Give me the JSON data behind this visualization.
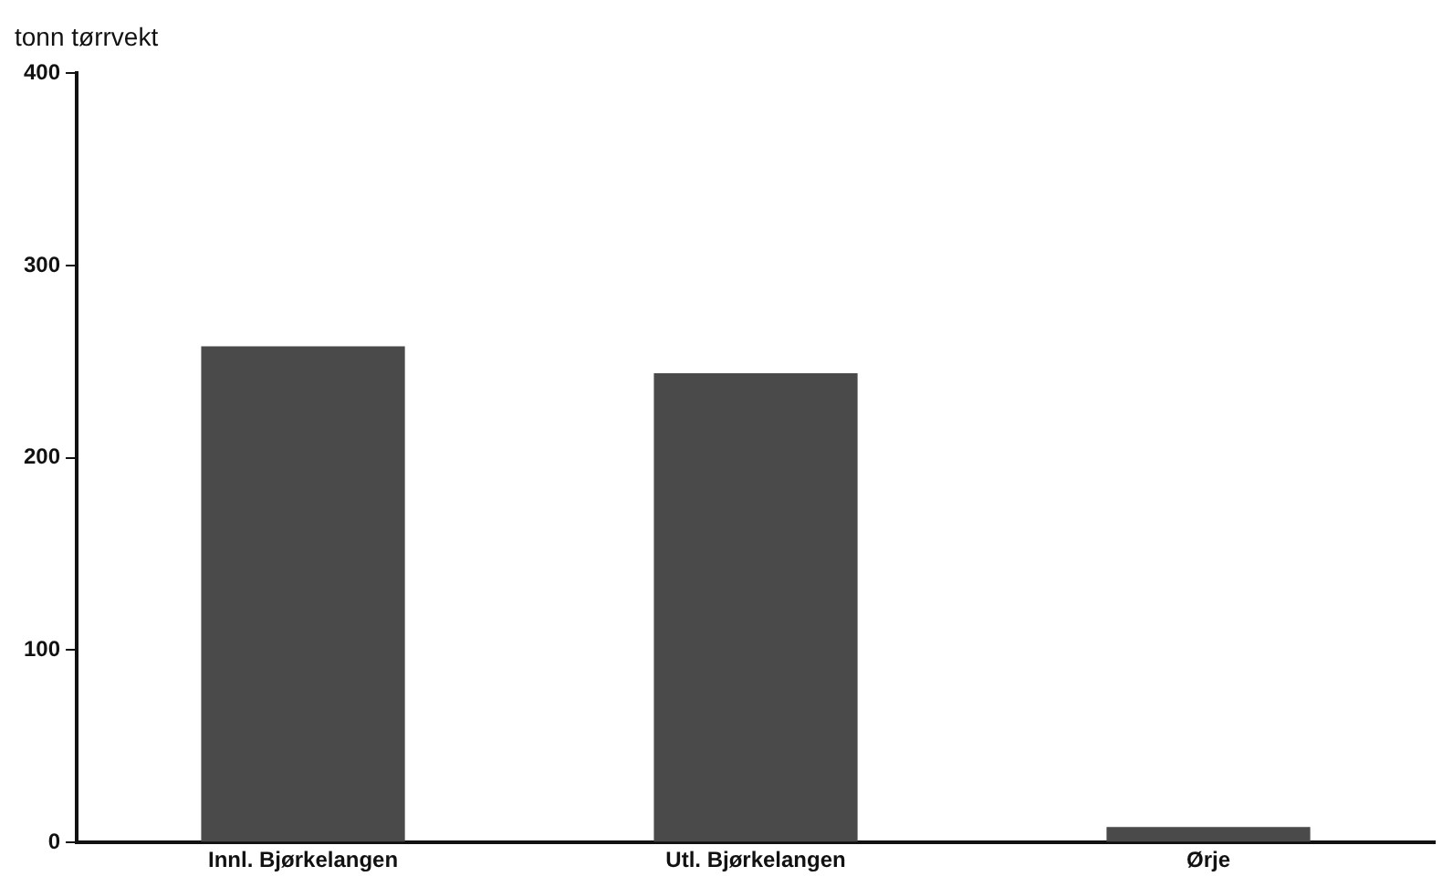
{
  "chart_data": {
    "type": "bar",
    "ylabel": "tonn tørrvekt",
    "categories": [
      "Innl. Bjørkelangen",
      "Utl. Bjørkelangen",
      "Ørje"
    ],
    "values": [
      258,
      244,
      8
    ],
    "color": "#4a4a4a",
    "ylim": [
      0,
      400
    ],
    "yticks": [
      0,
      100,
      200,
      300,
      400
    ],
    "grid": false,
    "legend": false
  }
}
